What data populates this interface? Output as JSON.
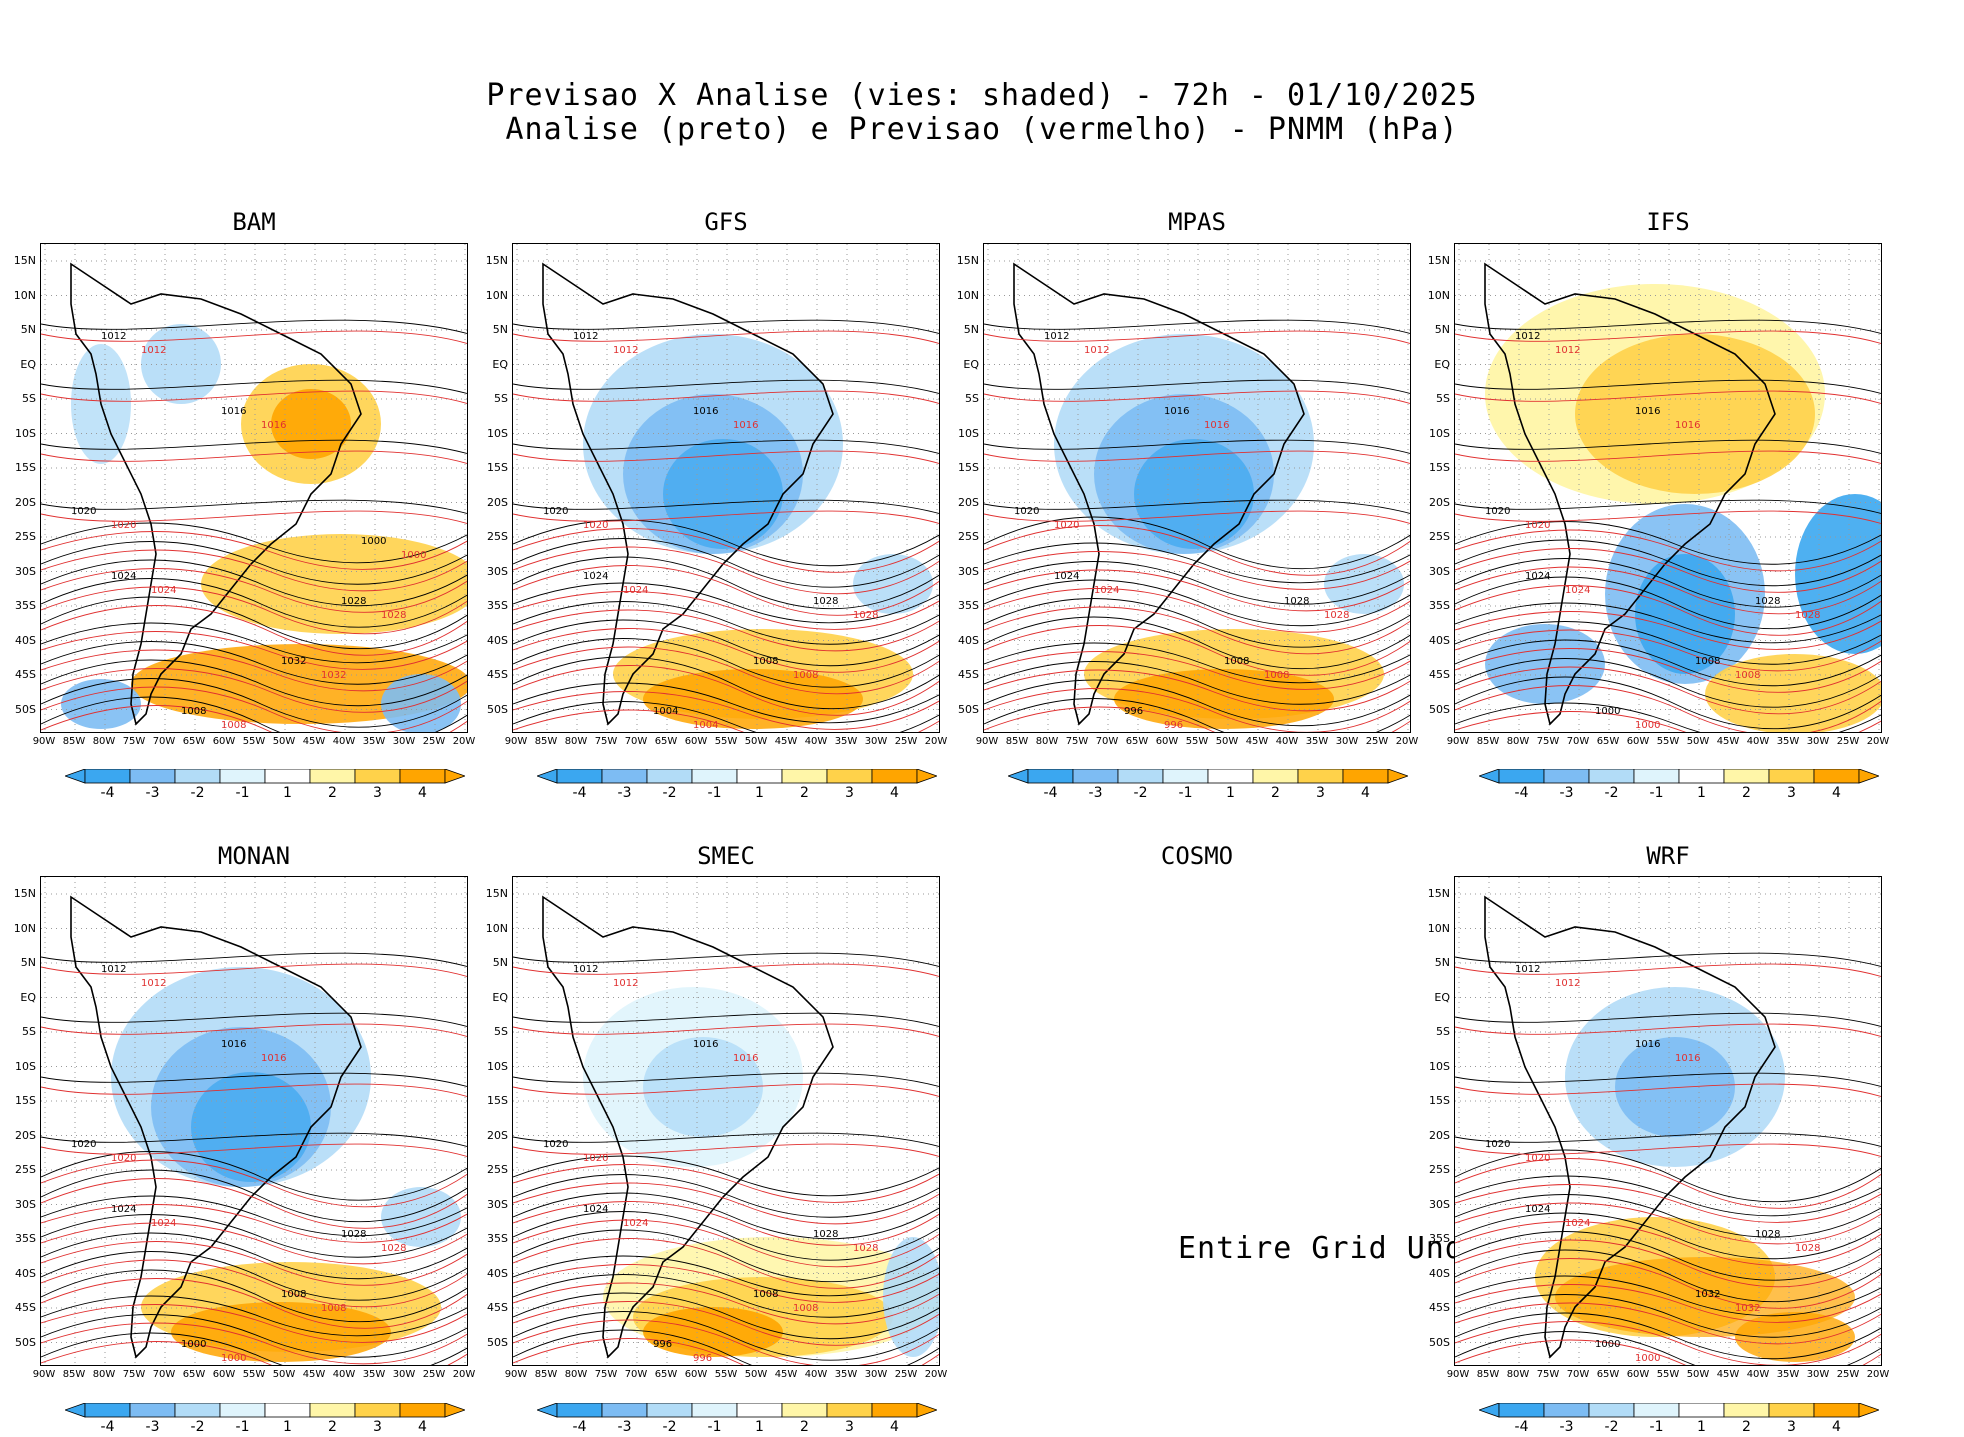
{
  "header": {
    "title_line1": "Previsao X Analise (vies: shaded) - 72h - 01/10/2025",
    "title_line2": "Analise (preto) e Previsao (vermelho) - PNMM (hPa)"
  },
  "axes": {
    "lat_labels": [
      "15N",
      "10N",
      "5N",
      "EQ",
      "5S",
      "10S",
      "15S",
      "20S",
      "25S",
      "30S",
      "35S",
      "40S",
      "45S",
      "50S"
    ],
    "lon_labels": [
      "90W",
      "85W",
      "80W",
      "75W",
      "70W",
      "65W",
      "60W",
      "55W",
      "50W",
      "45W",
      "40W",
      "35W",
      "30W",
      "25W",
      "20W"
    ]
  },
  "colorbar": {
    "labels": [
      "-4",
      "-3",
      "-2",
      "-1",
      "1",
      "2",
      "3",
      "4"
    ],
    "colors": [
      "#3ba7f0",
      "#7dbcf3",
      "#b2dcf7",
      "#dff4fc",
      "#ffffff",
      "#fff6a8",
      "#ffd24a",
      "#ffa500"
    ]
  },
  "panels": [
    {
      "name": "BAM",
      "bias": "warm-north",
      "contours": [
        "1012",
        "1016",
        "1020",
        "1024",
        "1028",
        "1032",
        "1008",
        "1000"
      ]
    },
    {
      "name": "GFS",
      "bias": "cool-north",
      "contours": [
        "1012",
        "1016",
        "1020",
        "1024",
        "1028",
        "1008",
        "1004"
      ]
    },
    {
      "name": "MPAS",
      "bias": "cool-north",
      "contours": [
        "1012",
        "1016",
        "1020",
        "1024",
        "1028",
        "1008",
        "996"
      ]
    },
    {
      "name": "IFS",
      "bias": "warm-mixed",
      "contours": [
        "1012",
        "1016",
        "1020",
        "1024",
        "1028",
        "1008",
        "1000"
      ]
    },
    {
      "name": "MONAN",
      "bias": "cool-north",
      "contours": [
        "1012",
        "1016",
        "1020",
        "1024",
        "1028",
        "1008",
        "1000"
      ]
    },
    {
      "name": "SMEC",
      "bias": "warm-south",
      "contours": [
        "1012",
        "1016",
        "1020",
        "1024",
        "1028",
        "1008",
        "996"
      ]
    },
    {
      "name": "COSMO",
      "bias": "undefined",
      "contours": []
    },
    {
      "name": "WRF",
      "bias": "mixed",
      "contours": [
        "1012",
        "1016",
        "1020",
        "1024",
        "1028",
        "1032",
        "1000"
      ]
    }
  ],
  "undef_message": "Entire Grid Undef",
  "style": {
    "analysis_color": "#000000",
    "forecast_color": "#e03030"
  }
}
